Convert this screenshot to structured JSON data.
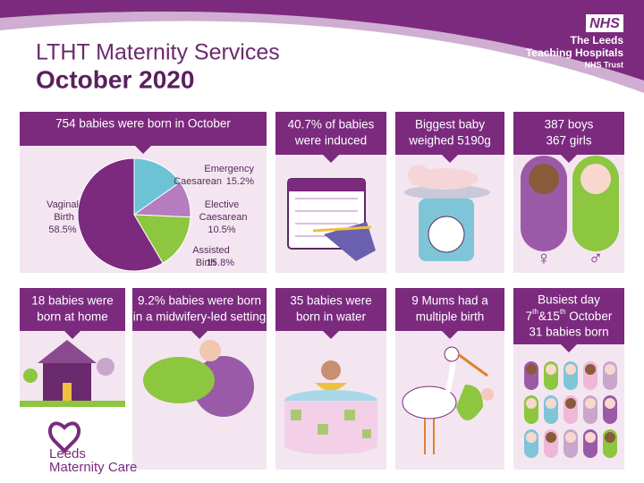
{
  "header": {
    "title": "LTHT Maternity Services",
    "subtitle": "October 2020"
  },
  "nhs_logo": {
    "badge": "NHS",
    "lines": [
      "The Leeds",
      "Teaching Hospitals",
      "NHS Trust"
    ]
  },
  "chart_data": {
    "type": "pie",
    "title": "754 babies were born in October",
    "categories": [
      "Emergency Caesarean",
      "Elective Caesarean",
      "Assisted Birth",
      "Vaginal Birth"
    ],
    "values": [
      15.2,
      10.5,
      15.8,
      58.5
    ],
    "value_labels": [
      "15.2%",
      "10.5%",
      "15.8%",
      "58.5%"
    ],
    "colors": [
      "#6cc3d5",
      "#b57cc0",
      "#8dc63f",
      "#7b2a7e"
    ]
  },
  "tiles": [
    {
      "lines": [
        "40.7% of babies",
        "were induced"
      ]
    },
    {
      "lines": [
        "Biggest baby",
        "weighed 5190g"
      ]
    },
    {
      "lines": [
        "387 boys",
        "367 girls"
      ]
    },
    {
      "lines": [
        "18 babies were",
        "born at home"
      ]
    },
    {
      "lines": [
        "9.2% babies were born",
        "in a midwifery-led setting"
      ]
    },
    {
      "lines": [
        "35 babies were",
        "born in water"
      ]
    },
    {
      "lines": [
        "9 Mums had a",
        "multiple birth"
      ]
    }
  ],
  "busiest": {
    "line1": "Busiest day",
    "date_parts": [
      "7",
      "th",
      "&15",
      "th",
      " October"
    ],
    "line3": "31 babies born"
  },
  "footer_logo": {
    "lines": [
      "Leeds",
      "Maternity Care"
    ]
  }
}
